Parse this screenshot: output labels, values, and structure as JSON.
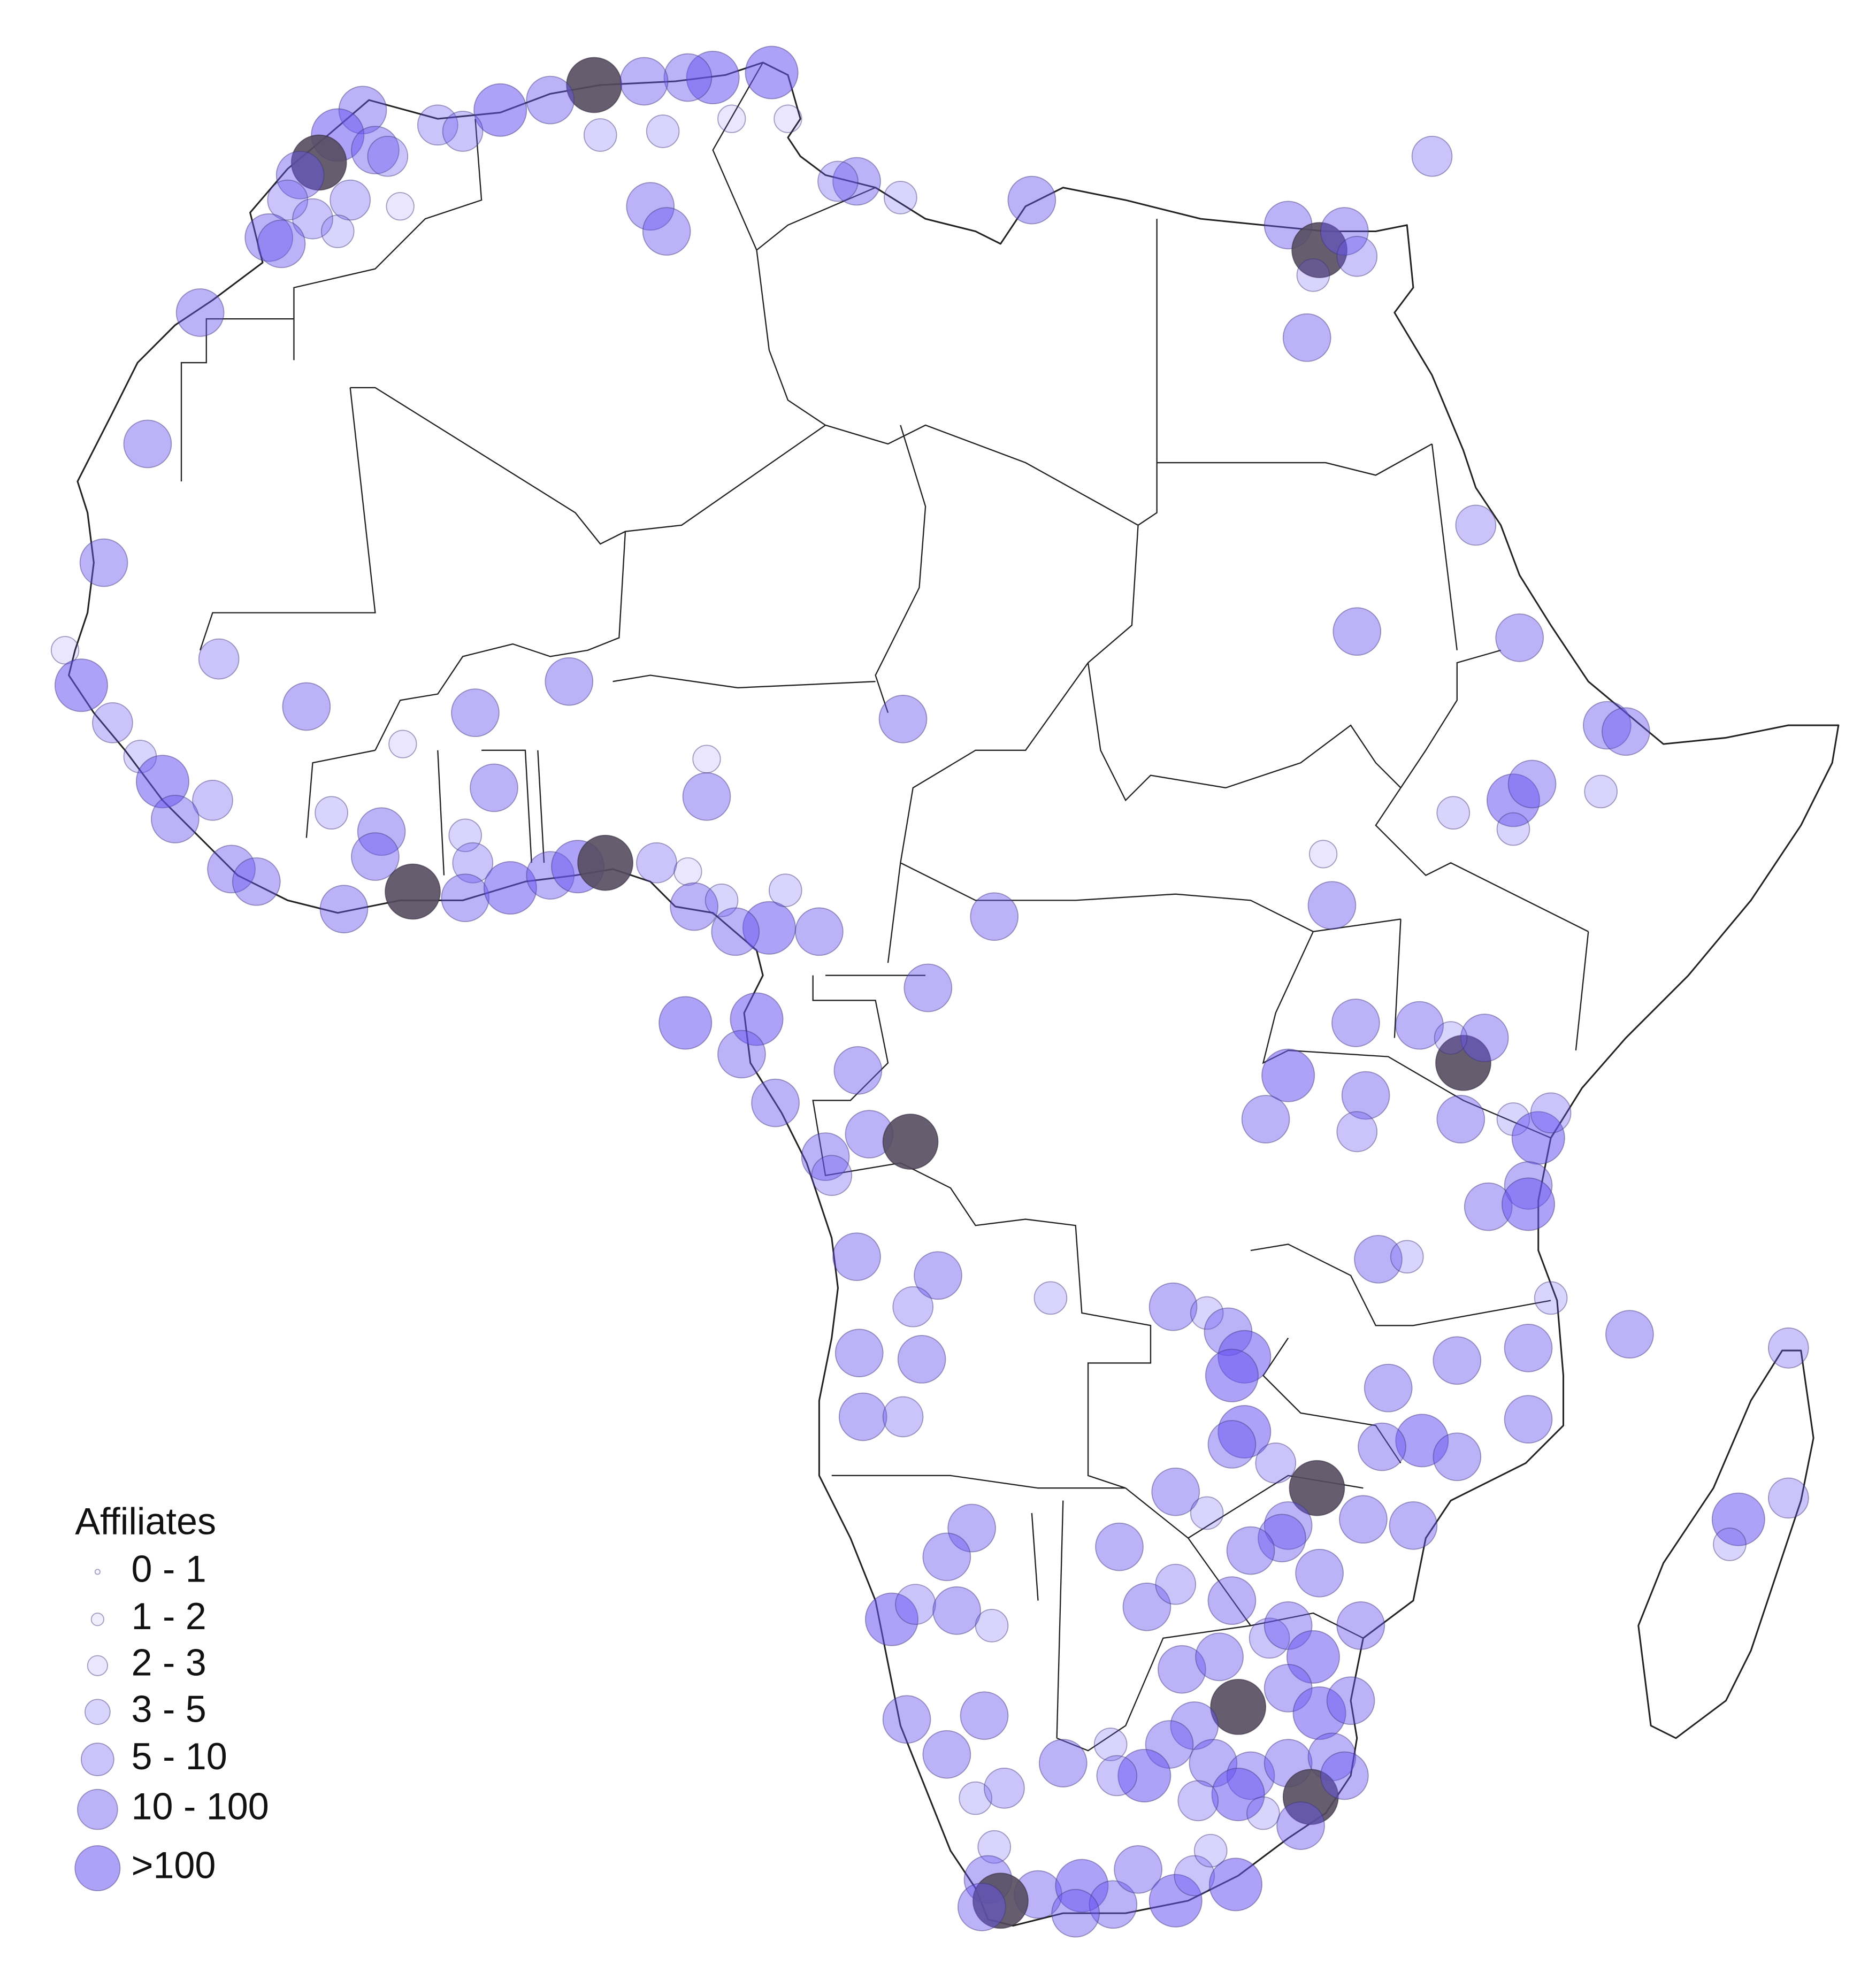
{
  "legend": {
    "title": "Affiliates",
    "entries": [
      "0 - 1",
      "1 - 2",
      "2 - 3",
      "3 - 5",
      "5 - 10",
      "10 - 100",
      ">100"
    ]
  }
}
